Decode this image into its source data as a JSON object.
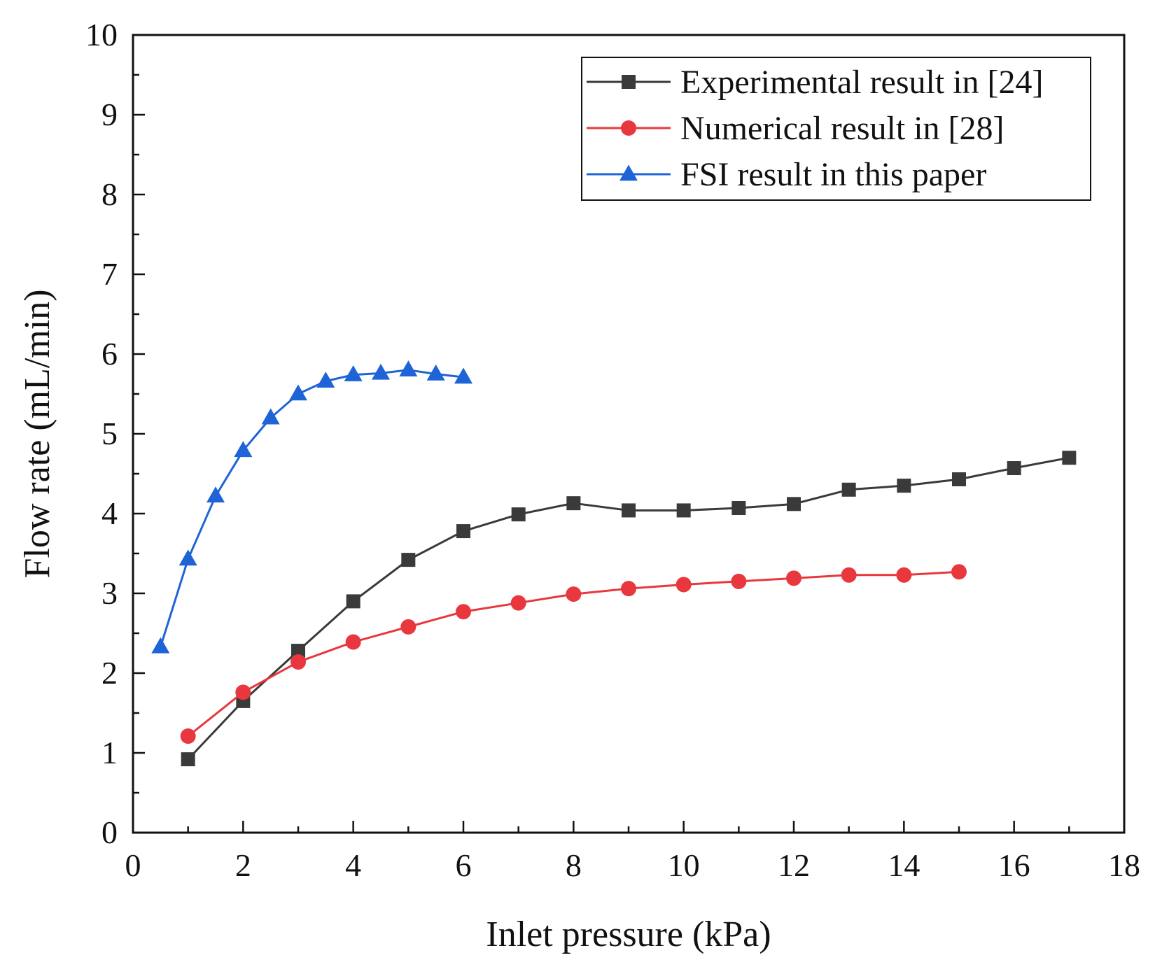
{
  "chart_data": {
    "type": "line",
    "title": "",
    "xlabel": "Inlet pressure (kPa)",
    "ylabel": "Flow rate (mL/min)",
    "xlim": [
      0,
      18
    ],
    "ylim": [
      0,
      10
    ],
    "xticks": [
      0,
      2,
      4,
      6,
      8,
      10,
      12,
      14,
      16,
      18
    ],
    "yticks": [
      0,
      1,
      2,
      3,
      4,
      5,
      6,
      7,
      8,
      9,
      10
    ],
    "x_minor_step": 1,
    "y_minor_step": 0.5,
    "grid": false,
    "legend_position": "top-right",
    "series": [
      {
        "name": "Experimental result in [24]",
        "color": "#3a3a3a",
        "marker": "square",
        "x": [
          1,
          2,
          3,
          4,
          5,
          6,
          7,
          8,
          9,
          10,
          11,
          12,
          13,
          14,
          15,
          16,
          17
        ],
        "y": [
          0.92,
          1.65,
          2.28,
          2.9,
          3.42,
          3.78,
          3.99,
          4.13,
          4.04,
          4.04,
          4.07,
          4.12,
          4.3,
          4.35,
          4.43,
          4.57,
          4.7
        ]
      },
      {
        "name": "Numerical result in [28]",
        "color": "#e8383d",
        "marker": "circle",
        "x": [
          1,
          2,
          3,
          4,
          5,
          6,
          7,
          8,
          9,
          10,
          11,
          12,
          13,
          14,
          15
        ],
        "y": [
          1.21,
          1.76,
          2.14,
          2.39,
          2.58,
          2.77,
          2.88,
          2.99,
          3.06,
          3.11,
          3.15,
          3.19,
          3.23,
          3.23,
          3.27
        ]
      },
      {
        "name": "FSI result in this paper",
        "color": "#1f64d6",
        "marker": "triangle",
        "x": [
          0.5,
          1,
          1.5,
          2,
          2.5,
          3,
          3.5,
          4,
          4.5,
          5,
          5.5,
          6
        ],
        "y": [
          2.33,
          3.43,
          4.22,
          4.79,
          5.2,
          5.5,
          5.66,
          5.74,
          5.76,
          5.8,
          5.75,
          5.71
        ]
      }
    ]
  }
}
